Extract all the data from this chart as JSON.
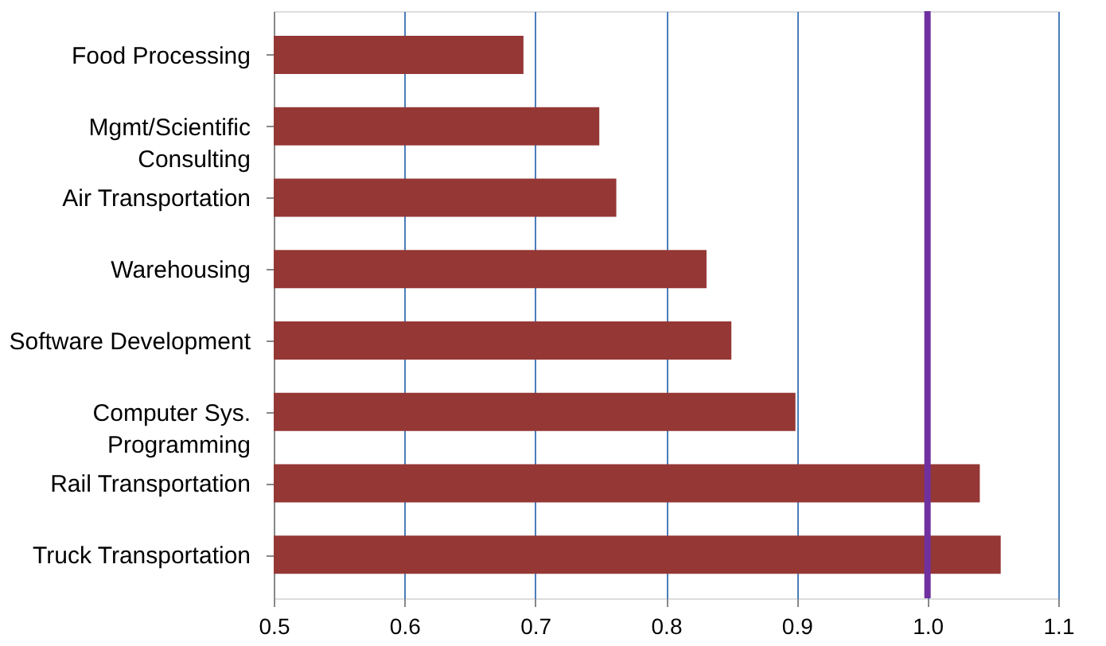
{
  "chart_data": {
    "type": "bar",
    "orientation": "horizontal",
    "categories": [
      "Food Processing",
      "Mgmt/Scientific\nConsulting",
      "Air Transportation",
      "Warehousing",
      "Software Development",
      "Computer Sys.\nProgramming",
      "Rail Transportation",
      "Truck Transportation"
    ],
    "values": [
      0.691,
      0.749,
      0.762,
      0.831,
      0.85,
      0.899,
      1.04,
      1.056
    ],
    "color": "#953735",
    "xlim": [
      0.5,
      1.1
    ],
    "xticks": [
      0.5,
      0.6,
      0.7,
      0.8,
      0.9,
      {
        "value": 1.0,
        "label": "1.0"
      },
      1.1
    ],
    "grid": "x",
    "ref_lines": [
      {
        "axis": "x",
        "value": 1.0,
        "color": "#7030a0"
      }
    ]
  }
}
